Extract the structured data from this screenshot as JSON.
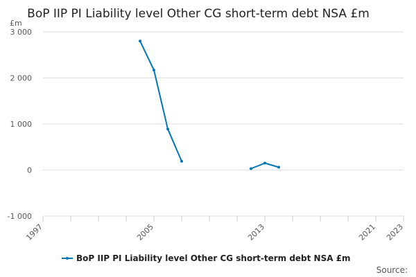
{
  "chart_data": {
    "type": "line",
    "title": "BoP IIP PI Liability level Other CG short-term debt NSA £m",
    "y_unit": "£m",
    "xlabel": "",
    "ylabel": "",
    "x_ticks": [
      1997,
      2005,
      2013,
      2021,
      2023
    ],
    "x_minor_ticks": [
      1997,
      1999,
      2001,
      2003,
      2005,
      2007,
      2009,
      2011,
      2013,
      2015,
      2017,
      2019,
      2021,
      2023
    ],
    "y_ticks": [
      3000,
      2000,
      1000,
      0,
      -1000
    ],
    "y_tick_labels": [
      "3 000",
      "2 000",
      "1 000",
      "0",
      "-1 000"
    ],
    "xlim": [
      1997,
      2023
    ],
    "ylim": [
      -1000,
      3000
    ],
    "grid": "horizontal",
    "legend_position": "bottom",
    "series": [
      {
        "name": "BoP IIP PI Liability level Other CG short-term debt NSA £m",
        "color": "#0076b6",
        "segments": [
          [
            [
              2004,
              2800
            ],
            [
              2005,
              2170
            ],
            [
              2006,
              890
            ],
            [
              2007,
              190
            ]
          ],
          [
            [
              2012,
              30
            ],
            [
              2013,
              150
            ],
            [
              2014,
              60
            ]
          ]
        ]
      }
    ],
    "source_label": "Source:"
  }
}
